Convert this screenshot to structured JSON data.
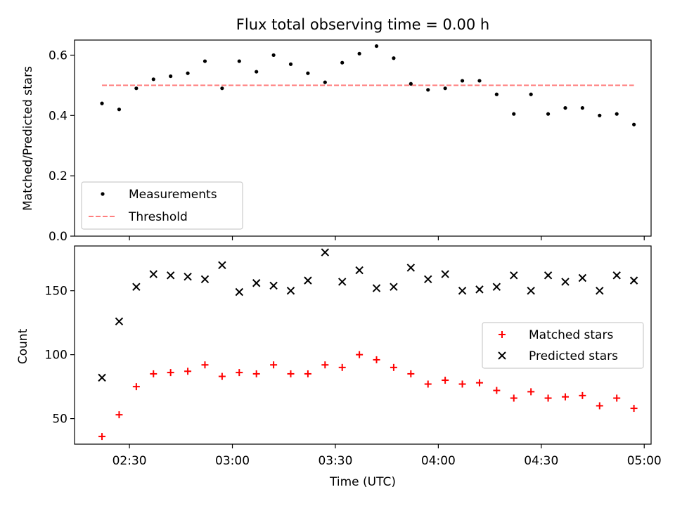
{
  "chart_data": [
    {
      "type": "scatter",
      "title": "Flux total observing time = 0.00 h",
      "xlabel": "",
      "ylabel": "Matched/Predicted stars",
      "xlim": [
        "02:14",
        "05:02"
      ],
      "ylim": [
        0,
        0.65
      ],
      "y_ticks": [
        0.0,
        0.2,
        0.4,
        0.6
      ],
      "y_tick_labels": [
        "0.0",
        "0.2",
        "0.4",
        "0.6"
      ],
      "legend_position": "lower-left",
      "series": [
        {
          "name": "Measurements",
          "marker": "dot",
          "color": "#000000",
          "x": [
            "02:22",
            "02:27",
            "02:32",
            "02:37",
            "02:42",
            "02:47",
            "02:52",
            "02:57",
            "03:02",
            "03:07",
            "03:12",
            "03:17",
            "03:22",
            "03:27",
            "03:32",
            "03:37",
            "03:42",
            "03:47",
            "03:52",
            "03:57",
            "04:02",
            "04:07",
            "04:12",
            "04:17",
            "04:22",
            "04:27",
            "04:32",
            "04:37",
            "04:42",
            "04:47",
            "04:52",
            "04:57"
          ],
          "y": [
            0.44,
            0.42,
            0.49,
            0.52,
            0.53,
            0.54,
            0.58,
            0.49,
            0.58,
            0.545,
            0.6,
            0.57,
            0.54,
            0.51,
            0.575,
            0.605,
            0.63,
            0.59,
            0.505,
            0.485,
            0.49,
            0.515,
            0.515,
            0.47,
            0.405,
            0.47,
            0.405,
            0.425,
            0.425,
            0.4,
            0.405,
            0.37
          ]
        },
        {
          "name": "Threshold",
          "marker": "dashed-line",
          "color": "#ff7f7f",
          "x": [
            "02:22",
            "04:57"
          ],
          "y": [
            0.5,
            0.5
          ]
        }
      ]
    },
    {
      "type": "scatter",
      "title": "",
      "xlabel": "Time (UTC)",
      "ylabel": "Count",
      "xlim": [
        "02:14",
        "05:02"
      ],
      "ylim": [
        30,
        185
      ],
      "x_ticks": [
        "02:30",
        "03:00",
        "03:30",
        "04:00",
        "04:30",
        "05:00"
      ],
      "y_ticks": [
        50,
        100,
        150
      ],
      "y_tick_labels": [
        "50",
        "100",
        "150"
      ],
      "legend_position": "center-right",
      "series": [
        {
          "name": "Matched stars",
          "marker": "plus",
          "color": "#ff0000",
          "x": [
            "02:22",
            "02:27",
            "02:32",
            "02:37",
            "02:42",
            "02:47",
            "02:52",
            "02:57",
            "03:02",
            "03:07",
            "03:12",
            "03:17",
            "03:22",
            "03:27",
            "03:32",
            "03:37",
            "03:42",
            "03:47",
            "03:52",
            "03:57",
            "04:02",
            "04:07",
            "04:12",
            "04:17",
            "04:22",
            "04:27",
            "04:32",
            "04:37",
            "04:42",
            "04:47",
            "04:52",
            "04:57"
          ],
          "y": [
            36,
            53,
            75,
            85,
            86,
            87,
            92,
            83,
            86,
            85,
            92,
            85,
            85,
            92,
            90,
            100,
            96,
            90,
            85,
            77,
            80,
            77,
            78,
            72,
            66,
            71,
            66,
            67,
            68,
            60,
            66,
            58
          ]
        },
        {
          "name": "Predicted stars",
          "marker": "x",
          "color": "#000000",
          "x": [
            "02:22",
            "02:27",
            "02:32",
            "02:37",
            "02:42",
            "02:47",
            "02:52",
            "02:57",
            "03:02",
            "03:07",
            "03:12",
            "03:17",
            "03:22",
            "03:27",
            "03:32",
            "03:37",
            "03:42",
            "03:47",
            "03:52",
            "03:57",
            "04:02",
            "04:07",
            "04:12",
            "04:17",
            "04:22",
            "04:27",
            "04:32",
            "04:37",
            "04:42",
            "04:47",
            "04:52",
            "04:57"
          ],
          "y": [
            82,
            126,
            153,
            163,
            162,
            161,
            159,
            170,
            149,
            156,
            154,
            150,
            158,
            180,
            157,
            166,
            152,
            153,
            168,
            159,
            163,
            150,
            151,
            153,
            162,
            150,
            162,
            157,
            160,
            150,
            162,
            158
          ]
        }
      ]
    }
  ]
}
